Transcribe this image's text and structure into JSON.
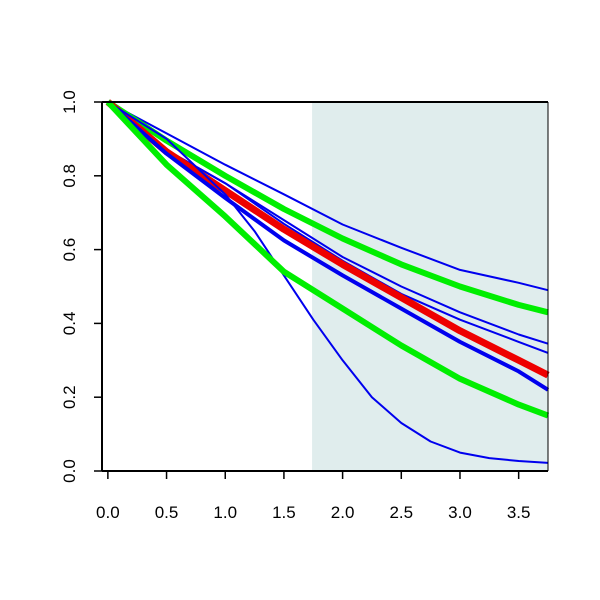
{
  "chart_data": {
    "type": "line",
    "xlim": [
      -0.05,
      3.75
    ],
    "ylim": [
      0.0,
      1.0
    ],
    "x_ticks": [
      "0.0",
      "0.5",
      "1.0",
      "1.5",
      "2.0",
      "2.5",
      "3.0",
      "3.5"
    ],
    "y_ticks": [
      "0.0",
      "0.2",
      "0.4",
      "0.6",
      "0.8",
      "1.0"
    ],
    "shaded_region": {
      "x_from": 1.74,
      "x_to": 3.75,
      "color": "#e0eded"
    },
    "grid": false,
    "legend": "none",
    "series": [
      {
        "color": "#0000ee",
        "width": 2,
        "x": [
          0,
          0.5,
          1.0,
          1.5,
          2.0,
          2.5,
          3.0,
          3.5,
          3.75
        ],
        "y": [
          1.0,
          0.915,
          0.83,
          0.75,
          0.668,
          0.605,
          0.545,
          0.51,
          0.49
        ]
      },
      {
        "color": "#00ee00",
        "width": 6,
        "x": [
          0,
          0.5,
          1.0,
          1.5,
          2.0,
          2.5,
          3.0,
          3.5,
          3.75
        ],
        "y": [
          1.0,
          0.895,
          0.8,
          0.71,
          0.63,
          0.56,
          0.5,
          0.45,
          0.43
        ]
      },
      {
        "color": "#0000ee",
        "width": 2,
        "x": [
          0,
          0.5,
          1.0,
          1.5,
          2.0,
          2.5,
          3.0,
          3.5,
          3.75
        ],
        "y": [
          1.0,
          0.87,
          0.78,
          0.68,
          0.58,
          0.5,
          0.43,
          0.37,
          0.345
        ]
      },
      {
        "color": "#0000ee",
        "width": 2,
        "x": [
          0,
          0.5,
          1.0,
          1.5,
          2.0,
          2.5,
          3.0,
          3.5,
          3.75
        ],
        "y": [
          1.0,
          0.87,
          0.78,
          0.67,
          0.57,
          0.48,
          0.41,
          0.35,
          0.32
        ]
      },
      {
        "color": "#ee0000",
        "width": 7,
        "x": [
          0,
          0.5,
          1.0,
          1.5,
          2.0,
          2.5,
          3.0,
          3.5,
          3.75
        ],
        "y": [
          1.0,
          0.865,
          0.76,
          0.655,
          0.56,
          0.47,
          0.38,
          0.3,
          0.26
        ]
      },
      {
        "color": "#0000ee",
        "width": 4,
        "x": [
          0,
          0.5,
          1.0,
          1.5,
          2.0,
          2.5,
          3.0,
          3.5,
          3.75
        ],
        "y": [
          1.0,
          0.86,
          0.74,
          0.625,
          0.53,
          0.44,
          0.35,
          0.27,
          0.22
        ]
      },
      {
        "color": "#0000ee",
        "width": 2,
        "x": [
          0,
          0.5,
          1.0,
          1.25,
          1.5,
          1.75,
          2.0,
          2.25,
          2.5,
          2.75,
          3.0,
          3.25,
          3.5,
          3.75
        ],
        "y": [
          1.0,
          0.9,
          0.75,
          0.65,
          0.53,
          0.41,
          0.3,
          0.2,
          0.13,
          0.08,
          0.05,
          0.035,
          0.027,
          0.022
        ]
      },
      {
        "color": "#00ee00",
        "width": 6,
        "x": [
          0,
          0.5,
          1.0,
          1.5,
          2.0,
          2.5,
          3.0,
          3.5,
          3.75
        ],
        "y": [
          1.0,
          0.83,
          0.69,
          0.54,
          0.44,
          0.34,
          0.25,
          0.18,
          0.15
        ]
      }
    ]
  }
}
